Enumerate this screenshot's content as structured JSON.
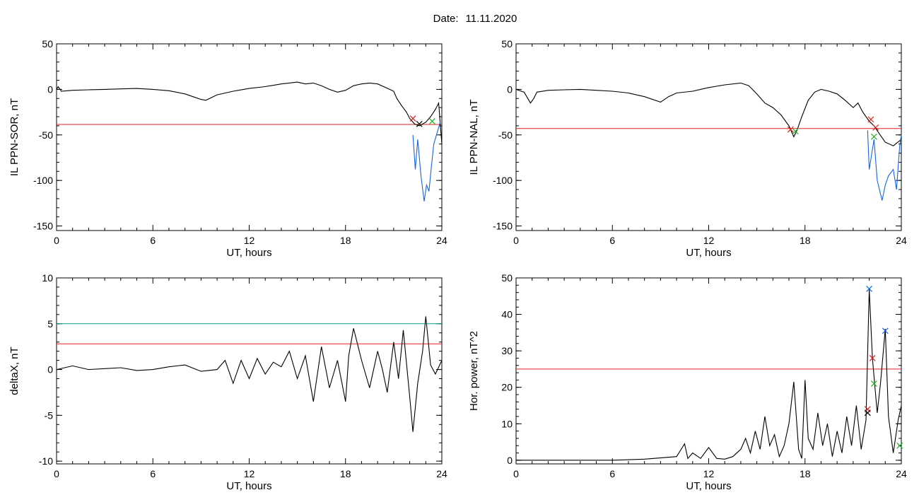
{
  "title": {
    "label": "Date:",
    "value": "11.11.2020"
  },
  "chart_data": [
    {
      "type": "line",
      "ylabel": "IL PPN-SOR, nT",
      "xlabel": "UT, hours",
      "xlim": [
        0,
        24
      ],
      "ylim": [
        -155,
        50
      ],
      "xticks": [
        0,
        6,
        12,
        18,
        24
      ],
      "yticks": [
        -150,
        -100,
        -50,
        0,
        50
      ],
      "thresholds": [
        {
          "y": -38.5,
          "color": "#e02020"
        }
      ],
      "series": [
        {
          "color": "#000000",
          "x": [
            0,
            0.1,
            0.3,
            1,
            2,
            3,
            4,
            5,
            6,
            7,
            8,
            8.5,
            9,
            9.3,
            10,
            11,
            12,
            13,
            14,
            14.5,
            15,
            15.5,
            16,
            16.5,
            17,
            17.5,
            18,
            18.5,
            19,
            19.5,
            20,
            20.5,
            21,
            21.2,
            21.5,
            21.8,
            22,
            22.3,
            22.6,
            23,
            23.3,
            23.6,
            23.8,
            24
          ],
          "y": [
            0,
            3,
            -2,
            -1,
            -0.5,
            0,
            0.5,
            1,
            0,
            -1.5,
            -5,
            -8,
            -11,
            -12,
            -6,
            -2,
            1,
            3,
            6,
            7,
            8,
            6,
            7,
            4,
            0,
            -3,
            -1,
            4,
            6,
            7,
            6,
            2,
            -2,
            -10,
            -18,
            -25,
            -32,
            -38,
            -40,
            -36,
            -30,
            -22,
            -15,
            -60
          ]
        },
        {
          "color": "#1565e0",
          "x": [
            22.2,
            22.35,
            22.5,
            22.7,
            22.9,
            23.05,
            23.2,
            23.35,
            23.5,
            23.7,
            23.9
          ],
          "y": [
            -50,
            -88,
            -55,
            -95,
            -123,
            -105,
            -112,
            -85,
            -60,
            -48,
            -36
          ]
        }
      ],
      "markers": [
        {
          "x": 22.2,
          "y": -32,
          "color": "#e02020"
        },
        {
          "x": 22.6,
          "y": -38,
          "color": "#000000"
        },
        {
          "x": 23.4,
          "y": -35,
          "color": "#20b020"
        }
      ]
    },
    {
      "type": "line",
      "ylabel": "IL PPN-NAL, nT",
      "xlabel": "UT, hours",
      "xlim": [
        0,
        24
      ],
      "ylim": [
        -155,
        50
      ],
      "xticks": [
        0,
        6,
        12,
        18,
        24
      ],
      "yticks": [
        -150,
        -100,
        -50,
        0,
        50
      ],
      "thresholds": [
        {
          "y": -43,
          "color": "#e02020"
        }
      ],
      "series": [
        {
          "color": "#000000",
          "x": [
            0,
            0.5,
            0.9,
            1.1,
            1.3,
            2,
            3,
            4,
            5,
            6,
            7,
            8,
            9,
            9.5,
            10,
            11,
            12,
            13,
            14,
            14.5,
            15,
            15.5,
            16,
            16.5,
            17,
            17.3,
            17.5,
            17.8,
            18.2,
            18.6,
            19,
            19.5,
            20,
            20.5,
            21,
            21.3,
            21.6,
            22,
            22.3,
            22.6,
            23,
            23.5,
            24
          ],
          "y": [
            0,
            -3,
            -15,
            -10,
            -3,
            -1,
            -0.5,
            0,
            -1,
            -2,
            -4,
            -8,
            -14,
            -8,
            -4,
            -2,
            2,
            5,
            7,
            4,
            -5,
            -15,
            -20,
            -28,
            -40,
            -52,
            -45,
            -30,
            -12,
            -3,
            0,
            -2,
            -5,
            -12,
            -20,
            -15,
            -25,
            -35,
            -40,
            -48,
            -58,
            -62,
            -55
          ]
        },
        {
          "color": "#1565e0",
          "x": [
            21.9,
            22.0,
            22.3,
            22.5,
            22.8,
            23.0,
            23.2,
            23.5,
            23.7,
            23.9,
            24
          ],
          "y": [
            -45,
            -88,
            -55,
            -100,
            -122,
            -105,
            -95,
            -88,
            -110,
            -62,
            -50
          ]
        }
      ],
      "markers": [
        {
          "x": 17.1,
          "y": -44,
          "color": "#e02020"
        },
        {
          "x": 17.4,
          "y": -46,
          "color": "#20b020"
        },
        {
          "x": 22.1,
          "y": -33,
          "color": "#e02020"
        },
        {
          "x": 22.4,
          "y": -42,
          "color": "#e02020"
        },
        {
          "x": 22.3,
          "y": -52,
          "color": "#20b020"
        }
      ]
    },
    {
      "type": "line",
      "ylabel": "deltaX, nT",
      "xlabel": "UT, hours",
      "xlim": [
        0,
        24
      ],
      "ylim": [
        -10.3,
        10
      ],
      "xticks": [
        0,
        6,
        12,
        18,
        24
      ],
      "yticks": [
        -10,
        -5,
        0,
        5,
        10
      ],
      "thresholds": [
        {
          "y": 5,
          "color": "#1a9a9a"
        },
        {
          "y": 2.8,
          "color": "#e02020"
        }
      ],
      "series": [
        {
          "color": "#000000",
          "x": [
            0,
            0.5,
            1,
            2,
            3,
            4,
            5,
            6,
            7,
            8,
            9,
            10,
            10.5,
            11,
            11.5,
            12,
            12.5,
            13,
            13.5,
            14,
            14.5,
            15,
            15.5,
            16,
            16.5,
            17,
            17.5,
            18,
            18.2,
            18.5,
            19,
            19.5,
            20,
            20.3,
            20.6,
            21,
            21.3,
            21.6,
            22,
            22.2,
            22.5,
            22.8,
            23,
            23.3,
            23.6,
            24
          ],
          "y": [
            0,
            0.2,
            0.4,
            0,
            0.1,
            0.2,
            -0.1,
            0,
            0.3,
            0.5,
            -0.2,
            0,
            1,
            -1.5,
            1,
            -1,
            1.2,
            -0.5,
            0.8,
            0.3,
            2,
            -1,
            1.5,
            -3.5,
            2.5,
            -2,
            1,
            -3.5,
            1.5,
            4.5,
            1,
            -2,
            2,
            0,
            -2.5,
            3,
            -1,
            4.3,
            -3,
            -6.8,
            -1.5,
            2,
            5.8,
            0.5,
            -0.5,
            1
          ]
        }
      ],
      "markers": []
    },
    {
      "type": "line",
      "ylabel": "Hor. power, nT^2",
      "xlabel": "UT, hours",
      "xlim": [
        0,
        24
      ],
      "ylim": [
        -1,
        50
      ],
      "xticks": [
        0,
        6,
        12,
        18,
        24
      ],
      "yticks": [
        0,
        10,
        20,
        30,
        40,
        50
      ],
      "thresholds": [
        {
          "y": 25,
          "color": "#e02020"
        }
      ],
      "series": [
        {
          "color": "#000000",
          "x": [
            0,
            6,
            8,
            10,
            10.5,
            10.7,
            11,
            11.5,
            12,
            12.5,
            13,
            13.5,
            14,
            14.3,
            14.6,
            14.9,
            15.2,
            15.5,
            15.8,
            16.1,
            16.4,
            16.7,
            17,
            17.3,
            17.6,
            17.8,
            18,
            18.2,
            18.5,
            18.8,
            19.1,
            19.4,
            19.7,
            20,
            20.3,
            20.6,
            20.9,
            21.2,
            21.5,
            21.8,
            22,
            22.2,
            22.5,
            22.7,
            23,
            23.2,
            23.5,
            23.8,
            24
          ],
          "y": [
            0,
            0,
            0.3,
            1,
            4.5,
            0.5,
            2,
            0.5,
            3.5,
            0.5,
            0.3,
            1,
            3,
            6,
            2,
            8,
            3,
            12,
            4,
            7,
            1,
            4,
            10,
            21.5,
            3,
            0.5,
            22,
            6,
            3,
            13,
            4,
            10,
            1,
            8,
            2,
            12,
            4,
            15,
            3,
            11,
            47,
            28,
            13,
            21,
            36,
            12,
            2,
            11,
            15
          ]
        }
      ],
      "markers": [
        {
          "x": 22.0,
          "y": 47,
          "color": "#1565e0"
        },
        {
          "x": 23.0,
          "y": 35.5,
          "color": "#1565e0"
        },
        {
          "x": 22.2,
          "y": 28,
          "color": "#e02020"
        },
        {
          "x": 22.3,
          "y": 21,
          "color": "#20b020"
        },
        {
          "x": 21.9,
          "y": 14,
          "color": "#e02020"
        },
        {
          "x": 21.9,
          "y": 13,
          "color": "#000000"
        },
        {
          "x": 23.9,
          "y": 4,
          "color": "#20b020"
        }
      ]
    }
  ]
}
